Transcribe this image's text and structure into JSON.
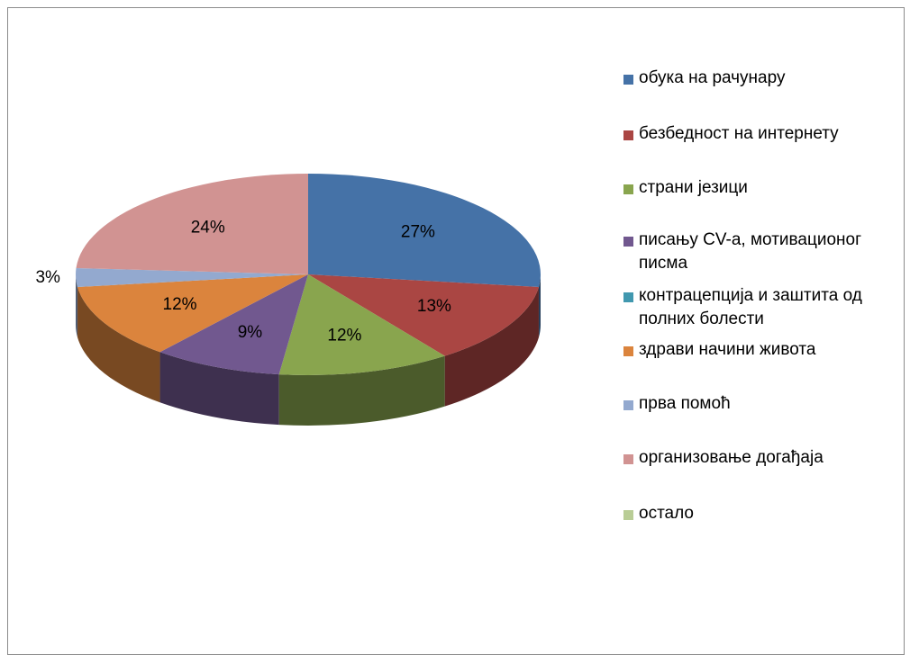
{
  "chart_data": {
    "type": "pie3d",
    "categories": [
      "обука на рачунару",
      "безбедност на интернету",
      "страни језици",
      "писању CV-а, мотивационог писма",
      "контрацепција и заштита од полних болести",
      "здрави начини живота",
      "прва помоћ",
      "организовање догађаја",
      "остало"
    ],
    "values": [
      27,
      13,
      12,
      9,
      0,
      12,
      3,
      24,
      0
    ],
    "value_labels": [
      "27%",
      "13%",
      "12%",
      "9%",
      null,
      "12%",
      "3%",
      "24%",
      null
    ],
    "colors": [
      "#4572a7",
      "#aa4643",
      "#89a54e",
      "#71588f",
      "#4198af",
      "#db843d",
      "#93a9cf",
      "#d19392",
      "#b9cd96"
    ],
    "legend": "right"
  }
}
